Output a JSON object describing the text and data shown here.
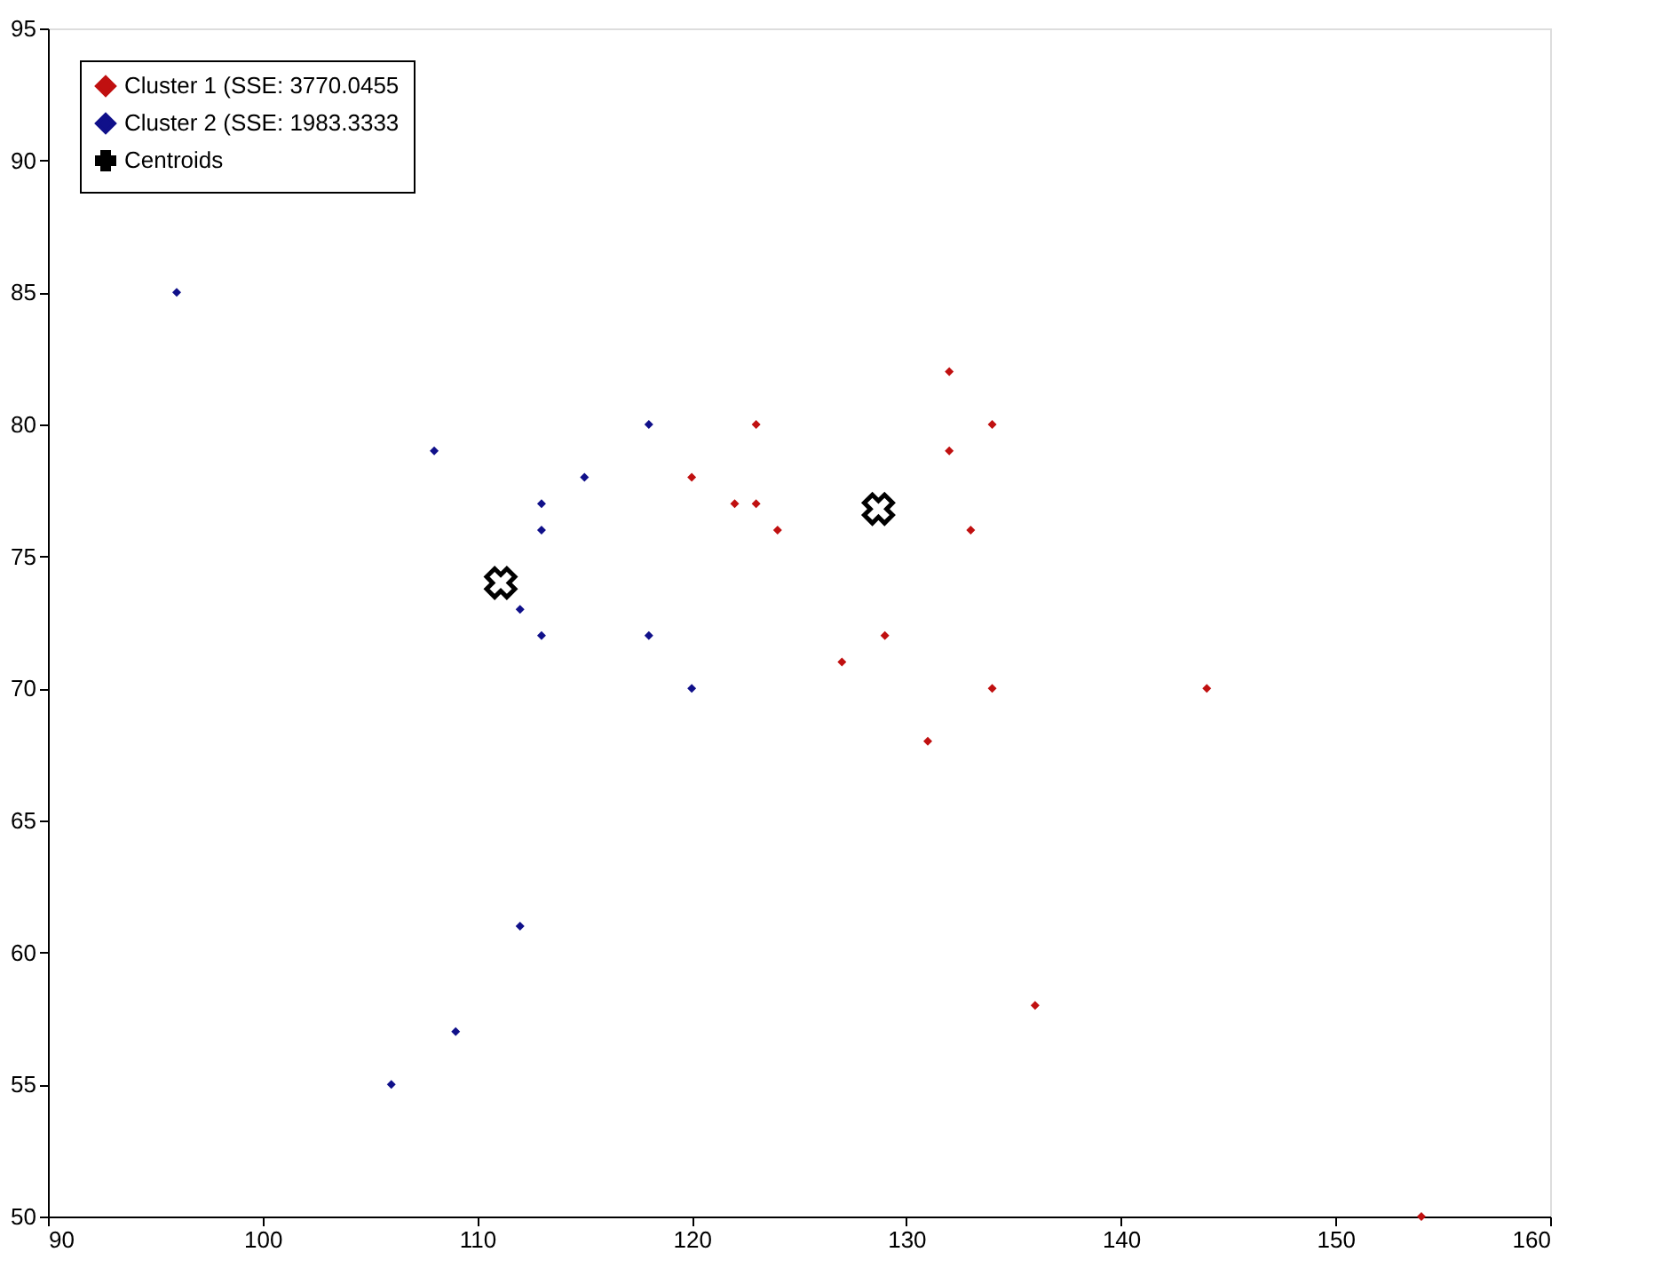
{
  "chart_data": {
    "type": "scatter",
    "xlim": [
      90,
      160
    ],
    "xticks": [
      90,
      100,
      110,
      120,
      130,
      140,
      150,
      160
    ],
    "ylim": [
      50,
      95
    ],
    "yticks": [
      50,
      55,
      60,
      65,
      70,
      75,
      80,
      85,
      90,
      95
    ],
    "grid": false,
    "legend": "top left",
    "series": [
      {
        "name": "Cluster 1 (SSE: 3770.0455",
        "color": "#c01010",
        "marker": "diamond",
        "x": [
          132,
          123,
          134,
          132,
          120,
          122,
          123,
          124,
          133,
          129,
          127,
          134,
          144,
          131,
          136,
          154
        ],
        "values": [
          82,
          80,
          80,
          79,
          78,
          77,
          77,
          76,
          76,
          72,
          71,
          70,
          70,
          68,
          58,
          50
        ]
      },
      {
        "name": "Cluster 2 (SSE: 1983.3333",
        "color": "#10108a",
        "marker": "diamond",
        "x": [
          96,
          108,
          118,
          115,
          113,
          113,
          112,
          113,
          118,
          120,
          112,
          109,
          106
        ],
        "values": [
          85,
          79,
          80,
          78,
          77,
          76,
          73,
          72,
          72,
          70,
          61,
          57,
          55
        ]
      },
      {
        "name": "Centroids",
        "color": "#000000",
        "marker": "cross",
        "x": [
          111.1,
          128.7
        ],
        "values": [
          74,
          76.8
        ]
      }
    ]
  }
}
